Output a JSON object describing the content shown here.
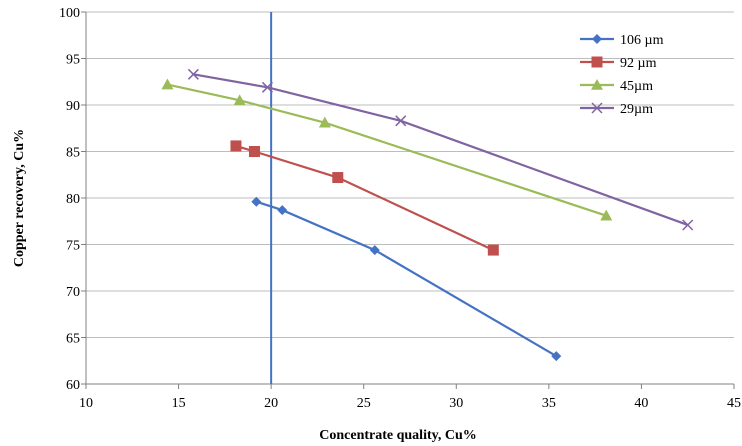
{
  "chart_data": {
    "type": "line",
    "title": "",
    "xlabel": "Concentrate quality, Cu%",
    "ylabel": "Copper recovery, Cu%",
    "xlim": [
      10,
      45
    ],
    "ylim": [
      60,
      100
    ],
    "x_ticks": [
      "10",
      "15",
      "20",
      "25",
      "30",
      "35",
      "40",
      "45"
    ],
    "y_ticks": [
      "60",
      "65",
      "70",
      "75",
      "80",
      "85",
      "90",
      "95",
      "100"
    ],
    "grid": "horizontal",
    "legend_position": "top-right",
    "reference_line": {
      "x": 20,
      "color": "#4472c4"
    },
    "series": [
      {
        "name": "106 µm",
        "color": "#4472c4",
        "marker": "diamond",
        "points": [
          [
            19.2,
            79.6
          ],
          [
            20.6,
            78.7
          ],
          [
            25.6,
            74.4
          ],
          [
            35.4,
            63.0
          ]
        ]
      },
      {
        "name": "92 µm",
        "color": "#c0504d",
        "marker": "square",
        "points": [
          [
            18.1,
            85.6
          ],
          [
            19.1,
            85.0
          ],
          [
            23.6,
            82.2
          ],
          [
            32.0,
            74.4
          ]
        ]
      },
      {
        "name": "45µm",
        "color": "#9bbb59",
        "marker": "triangle",
        "points": [
          [
            14.4,
            92.2
          ],
          [
            18.3,
            90.5
          ],
          [
            22.9,
            88.1
          ],
          [
            38.1,
            78.1
          ]
        ]
      },
      {
        "name": "29µm",
        "color": "#8064a2",
        "marker": "x",
        "points": [
          [
            15.8,
            93.3
          ],
          [
            19.8,
            91.9
          ],
          [
            27.0,
            88.3
          ],
          [
            42.5,
            77.1
          ]
        ]
      }
    ]
  }
}
